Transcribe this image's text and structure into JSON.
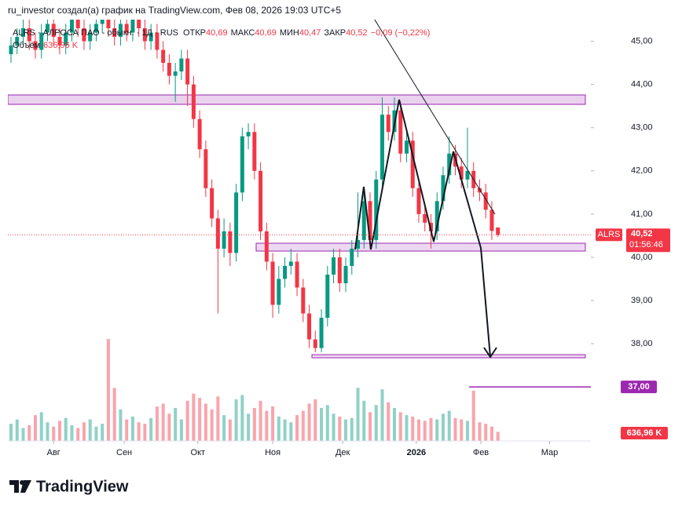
{
  "header": {
    "author_line": "ru_investor создал(а) график на TradingView.com, Фев 08, 2026 19:03 UTC+5"
  },
  "footer": {
    "brand": "TradingView"
  },
  "chart_data": {
    "type": "candlestick",
    "symbol": "ALRS · АЛРОСА ПАО - обыкн. · 1Д · RUS",
    "legend": [
      {
        "label": "ОТКР",
        "value": "40,69"
      },
      {
        "label": "МАКС",
        "value": "40,69"
      },
      {
        "label": "МИН",
        "value": "40,47"
      },
      {
        "label": "ЗАКР",
        "value": "40,52"
      }
    ],
    "change": "−0,09 (−0,22%)",
    "volume_label": "Объём",
    "volume_value": "636,96 K",
    "price_badge": {
      "ticker": "ALRS",
      "price": "40,52",
      "countdown": "01:56:46"
    },
    "up_color": "#089981",
    "down_color": "#f23645",
    "open": [
      44.7,
      44.9,
      45.1,
      45.3,
      45.0,
      44.8,
      45.2,
      45.4,
      45.1,
      44.9,
      45.2,
      45.5,
      45.3,
      45.0,
      45.2,
      45.4,
      45.6,
      45.3,
      45.1,
      45.4,
      45.2,
      45.5,
      45.3,
      45.0,
      45.2,
      44.8,
      44.5,
      44.2,
      44.3,
      44.6,
      44.0,
      43.2,
      42.5,
      41.6,
      40.9,
      40.2,
      40.6,
      40.1,
      41.5,
      42.8,
      42.9,
      42.0,
      40.6,
      39.9,
      38.9,
      39.5,
      39.8,
      39.9,
      39.3,
      38.7,
      38.1,
      37.9,
      38.6,
      39.6,
      40.0,
      39.4,
      39.8,
      40.2,
      40.4,
      41.3,
      40.4,
      41.8,
      43.3,
      42.9,
      43.4,
      42.4,
      42.7,
      41.6,
      41.0,
      40.8,
      40.6,
      41.3,
      41.9,
      42.4,
      42.1,
      41.8,
      42.0,
      41.6,
      41.5,
      41.1,
      40.69
    ],
    "high": [
      45.1,
      45.3,
      45.5,
      45.5,
      45.2,
      45.4,
      45.6,
      45.6,
      45.3,
      45.4,
      45.7,
      45.7,
      45.5,
      45.4,
      45.6,
      45.8,
      45.8,
      45.5,
      45.6,
      45.6,
      45.7,
      45.7,
      45.5,
      45.4,
      45.4,
      45.0,
      44.7,
      44.5,
      44.8,
      44.8,
      44.2,
      43.4,
      42.7,
      41.8,
      41.1,
      40.9,
      40.8,
      41.7,
      43.0,
      43.1,
      43.1,
      42.2,
      40.8,
      40.1,
      39.8,
      40.0,
      40.2,
      40.1,
      39.5,
      38.9,
      38.3,
      38.8,
      39.8,
      40.2,
      40.2,
      40.0,
      40.4,
      41.5,
      41.6,
      41.5,
      42.0,
      43.7,
      43.5,
      43.7,
      43.6,
      42.9,
      42.9,
      41.8,
      41.2,
      41.0,
      41.5,
      42.1,
      42.8,
      42.6,
      42.3,
      43.0,
      42.2,
      41.8,
      41.7,
      41.3,
      40.69
    ],
    "low": [
      44.5,
      44.7,
      44.9,
      44.8,
      44.6,
      44.6,
      45.0,
      44.9,
      44.7,
      44.7,
      45.0,
      45.1,
      44.8,
      44.8,
      45.0,
      45.2,
      45.1,
      44.9,
      44.9,
      45.0,
      45.0,
      45.1,
      44.8,
      44.8,
      44.6,
      44.3,
      44.0,
      43.6,
      44.1,
      43.5,
      43.0,
      42.3,
      41.4,
      40.7,
      38.7,
      40.0,
      39.8,
      39.9,
      41.3,
      42.5,
      41.8,
      40.4,
      39.7,
      38.6,
      38.7,
      39.3,
      39.6,
      39.1,
      38.5,
      37.9,
      37.8,
      37.8,
      38.4,
      39.4,
      39.2,
      39.2,
      39.6,
      40.0,
      40.2,
      40.2,
      40.2,
      41.6,
      42.7,
      42.7,
      42.2,
      42.2,
      41.4,
      40.8,
      40.6,
      40.2,
      40.4,
      41.1,
      41.7,
      41.9,
      41.6,
      41.6,
      41.4,
      41.3,
      40.9,
      40.4,
      40.47
    ],
    "close": [
      44.9,
      45.1,
      45.3,
      45.0,
      44.8,
      45.2,
      45.4,
      45.1,
      44.9,
      45.2,
      45.5,
      45.3,
      45.0,
      45.2,
      45.4,
      45.6,
      45.3,
      45.1,
      45.4,
      45.2,
      45.5,
      45.3,
      45.0,
      45.2,
      44.8,
      44.5,
      44.2,
      44.3,
      44.6,
      44.0,
      43.2,
      42.5,
      41.6,
      40.9,
      40.2,
      40.6,
      40.1,
      41.5,
      42.8,
      42.9,
      42.0,
      40.6,
      39.9,
      38.9,
      39.5,
      39.8,
      39.9,
      39.3,
      38.7,
      38.1,
      37.9,
      38.6,
      39.6,
      40.0,
      39.4,
      39.8,
      40.2,
      40.4,
      41.3,
      40.4,
      41.8,
      43.3,
      42.9,
      43.4,
      42.4,
      42.7,
      41.6,
      41.0,
      40.8,
      40.6,
      41.3,
      41.9,
      42.4,
      42.1,
      41.8,
      42.0,
      41.6,
      41.5,
      41.1,
      40.61,
      40.52
    ],
    "volume": [
      1200,
      1500,
      900,
      1100,
      1800,
      2000,
      1300,
      1000,
      1400,
      1600,
      1100,
      900,
      1300,
      1500,
      1000,
      1200,
      7100,
      3700,
      2200,
      1500,
      1700,
      1300,
      1200,
      1600,
      2400,
      2600,
      1900,
      2300,
      1500,
      2800,
      3300,
      3000,
      2600,
      2200,
      3100,
      1800,
      1500,
      2900,
      3200,
      1900,
      2300,
      2800,
      2100,
      2400,
      1700,
      1500,
      1300,
      1800,
      2100,
      2600,
      2900,
      2300,
      2500,
      1900,
      1700,
      1500,
      1600,
      3700,
      2800,
      2000,
      2500,
      3600,
      2700,
      2300,
      2000,
      1800,
      1700,
      1500,
      1400,
      1600,
      1500,
      1900,
      2100,
      1600,
      1500,
      1400,
      3500,
      1300,
      1200,
      1000,
      636.96
    ],
    "volume_lim": [
      0,
      8200
    ],
    "xlim": [
      0,
      94.5
    ],
    "xticks": [
      {
        "value": 7,
        "label": "Авг"
      },
      {
        "value": 18.6,
        "label": "Сен"
      },
      {
        "value": 30.7,
        "label": "Окт"
      },
      {
        "value": 43,
        "label": "Ноя"
      },
      {
        "value": 54.5,
        "label": "Дек"
      },
      {
        "value": 66.6,
        "label": "2026"
      },
      {
        "value": 77.2,
        "label": "Фев"
      },
      {
        "value": 88.5,
        "label": "Мар"
      }
    ],
    "ylim": [
      35.75,
      45.5
    ],
    "yticks": [
      {
        "value": 38,
        "label": "38,00"
      },
      {
        "value": 39,
        "label": "39,00"
      },
      {
        "value": 40,
        "label": "40,00"
      },
      {
        "value": 41,
        "label": "41,00"
      },
      {
        "value": 42,
        "label": "42,00"
      },
      {
        "value": 43,
        "label": "43,00"
      },
      {
        "value": 44,
        "label": "44,00"
      },
      {
        "value": 45,
        "label": "45,00"
      }
    ],
    "hline": {
      "value": 37,
      "label": "37,00",
      "color": "#9c27b0"
    },
    "grid": false
  }
}
